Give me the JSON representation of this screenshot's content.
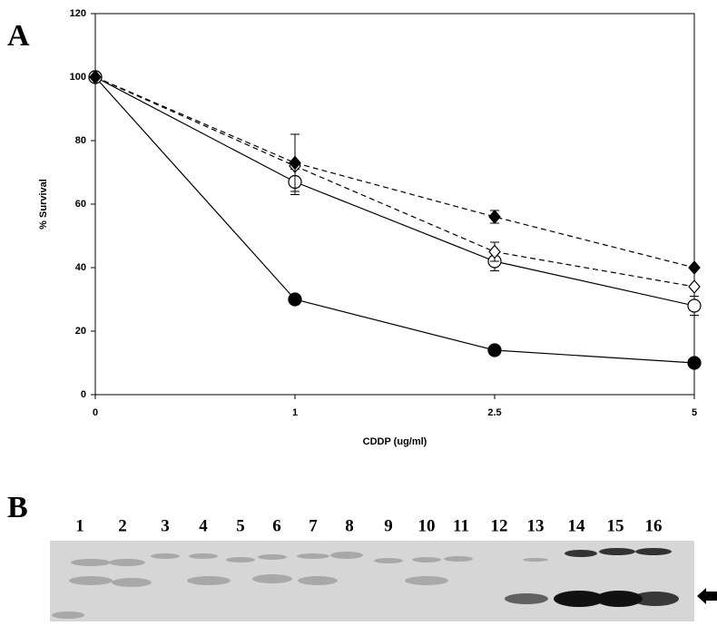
{
  "chart_data": {
    "type": "line",
    "panel_label": "A",
    "x_label": "CDDP (ug/ml)",
    "y_label": "% Survival",
    "categories": [
      "0",
      "1",
      "2.5",
      "5"
    ],
    "ylim": [
      0,
      120
    ],
    "yticks": [
      0,
      20,
      40,
      60,
      80,
      100,
      120
    ],
    "series": [
      {
        "color": "#000000",
        "marker": "circle",
        "filled": true,
        "dashed": false,
        "values": [
          100,
          30,
          14,
          10
        ],
        "errors": [
          null,
          null,
          null,
          null
        ]
      },
      {
        "color": "#000000",
        "marker": "circle",
        "filled": false,
        "dashed": false,
        "values": [
          100,
          67,
          42,
          28
        ],
        "errors": [
          null,
          4,
          3,
          3
        ]
      },
      {
        "color": "#000000",
        "marker": "diamond",
        "filled": false,
        "dashed": true,
        "values": [
          100,
          72,
          45,
          34
        ],
        "errors": [
          null,
          null,
          3,
          null
        ]
      },
      {
        "color": "#000000",
        "marker": "diamond",
        "filled": true,
        "dashed": true,
        "values": [
          100,
          73,
          56,
          40
        ],
        "errors": [
          null,
          9,
          2,
          null
        ]
      }
    ]
  },
  "gel": {
    "panel_label": "B",
    "lanes": [
      "1",
      "2",
      "3",
      "4",
      "5",
      "6",
      "7",
      "8",
      "9",
      "10",
      "11",
      "12",
      "13",
      "14",
      "15",
      "16"
    ]
  }
}
